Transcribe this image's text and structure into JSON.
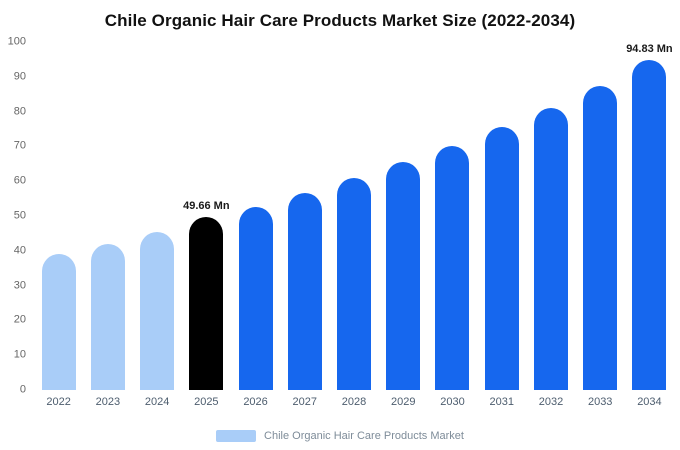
{
  "title": "Chile Organic Hair Care Products Market Size (2022-2034)",
  "legend": {
    "label": "Chile Organic Hair Care Products Market"
  },
  "colors": {
    "light_bar": "#a9cdf8",
    "primary_bar": "#1667ee",
    "highlight_bar": "#000000",
    "axis_text": "#666666",
    "x_label_text": "#4d5d6e",
    "legend_text": "#7e8c99",
    "annotation_text": "#1a1a1a",
    "background": "#ffffff"
  },
  "chart_data": {
    "type": "bar",
    "title": "Chile Organic Hair Care Products Market Size (2022-2034)",
    "categories": [
      "2022",
      "2023",
      "2024",
      "2025",
      "2026",
      "2027",
      "2028",
      "2029",
      "2030",
      "2031",
      "2032",
      "2033",
      "2034"
    ],
    "values": [
      39,
      42,
      45.5,
      49.66,
      52.5,
      56.5,
      61,
      65.5,
      70,
      75.5,
      81,
      87.5,
      94.83
    ],
    "bar_styles": [
      "light",
      "light",
      "light",
      "highlight",
      "primary",
      "primary",
      "primary",
      "primary",
      "primary",
      "primary",
      "primary",
      "primary",
      "primary"
    ],
    "annotations": [
      {
        "category": "2025",
        "text": "49.66 Mn"
      },
      {
        "category": "2034",
        "text": "94.83 Mn"
      }
    ],
    "unit": "Mn",
    "xlabel": "",
    "ylabel": "",
    "ylim": [
      0,
      100
    ],
    "yticks": [
      0,
      10,
      20,
      30,
      40,
      50,
      60,
      70,
      80,
      90,
      100
    ],
    "grid": false,
    "legend": [
      "Chile Organic Hair Care Products Market"
    ],
    "legend_position": "bottom"
  }
}
